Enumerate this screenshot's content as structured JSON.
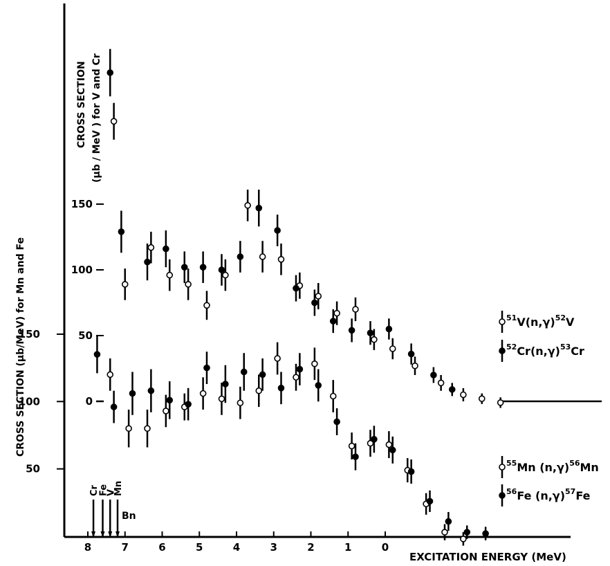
{
  "chart_data": {
    "type": "scatter",
    "xlabel": "EXCITATION ENERGY (MeV)",
    "x_ticks": [
      "8",
      "7",
      "6",
      "5",
      "4",
      "3",
      "2",
      "1",
      "0"
    ],
    "x_range": [
      8.4,
      -3.9
    ],
    "upper_panel": {
      "ylabel_line1": "CROSS SECTION",
      "ylabel_line2": "(μb / MeV ) for V and Cr",
      "y_ticks": [
        "150",
        "100",
        "50",
        "0"
      ],
      "ylim": [
        0,
        200
      ],
      "series": [
        {
          "label": "51V(n,γ)52V",
          "label_parts": [
            "51",
            "V(n,γ)",
            "52",
            "V"
          ],
          "marker": "open",
          "points": [
            {
              "x": 7.3,
              "y": 213,
              "err": 14
            },
            {
              "x": 7.0,
              "y": 89,
              "err": 12
            },
            {
              "x": 6.3,
              "y": 117,
              "err": 12
            },
            {
              "x": 5.8,
              "y": 96,
              "err": 12
            },
            {
              "x": 5.3,
              "y": 89,
              "err": 12
            },
            {
              "x": 4.8,
              "y": 73,
              "err": 11
            },
            {
              "x": 4.3,
              "y": 96,
              "err": 12
            },
            {
              "x": 3.7,
              "y": 149,
              "err": 12
            },
            {
              "x": 3.3,
              "y": 110,
              "err": 12
            },
            {
              "x": 2.8,
              "y": 108,
              "err": 12
            },
            {
              "x": 2.3,
              "y": 88,
              "err": 10
            },
            {
              "x": 1.8,
              "y": 80,
              "err": 10
            },
            {
              "x": 1.3,
              "y": 67,
              "err": 9
            },
            {
              "x": 0.8,
              "y": 70,
              "err": 9
            },
            {
              "x": 0.3,
              "y": 47,
              "err": 8
            },
            {
              "x": -0.2,
              "y": 40,
              "err": 8
            },
            {
              "x": -0.8,
              "y": 27,
              "err": 7
            },
            {
              "x": -1.5,
              "y": 14,
              "err": 6
            },
            {
              "x": -2.1,
              "y": 5,
              "err": 5
            },
            {
              "x": -2.6,
              "y": 2,
              "err": 4
            },
            {
              "x": -3.1,
              "y": -1,
              "err": 4
            }
          ]
        },
        {
          "label": "52Cr(n,γ)53Cr",
          "label_parts": [
            "52",
            "Cr(n,γ)",
            "53",
            "Cr"
          ],
          "marker": "filled",
          "points": [
            {
              "x": 7.4,
              "y": 250,
              "err": 18
            },
            {
              "x": 7.1,
              "y": 129,
              "err": 16
            },
            {
              "x": 6.4,
              "y": 106,
              "err": 14
            },
            {
              "x": 5.9,
              "y": 116,
              "err": 14
            },
            {
              "x": 5.4,
              "y": 102,
              "err": 12
            },
            {
              "x": 4.9,
              "y": 102,
              "err": 12
            },
            {
              "x": 4.4,
              "y": 100,
              "err": 12
            },
            {
              "x": 3.9,
              "y": 110,
              "err": 12
            },
            {
              "x": 3.4,
              "y": 147,
              "err": 14
            },
            {
              "x": 2.9,
              "y": 130,
              "err": 12
            },
            {
              "x": 2.4,
              "y": 86,
              "err": 10
            },
            {
              "x": 1.9,
              "y": 75,
              "err": 10
            },
            {
              "x": 1.4,
              "y": 61,
              "err": 9
            },
            {
              "x": 0.9,
              "y": 54,
              "err": 9
            },
            {
              "x": 0.4,
              "y": 52,
              "err": 9
            },
            {
              "x": -0.1,
              "y": 55,
              "err": 8
            },
            {
              "x": -0.7,
              "y": 36,
              "err": 8
            },
            {
              "x": -1.3,
              "y": 20,
              "err": 6
            },
            {
              "x": -1.8,
              "y": 9,
              "err": 5
            }
          ]
        }
      ]
    },
    "lower_panel": {
      "ylabel": "CROSS SECTION (μb/MeV) for Mn and Fe",
      "y_ticks": [
        "150",
        "100",
        "50"
      ],
      "ylim": [
        0,
        200
      ],
      "series": [
        {
          "label": "55Mn(n,γ)56Mn",
          "label_parts": [
            "55",
            "Mn (n,γ)",
            "56",
            "Mn"
          ],
          "marker": "open",
          "points": [
            {
              "x": 7.4,
              "y": 120,
              "err": 12
            },
            {
              "x": 6.9,
              "y": 80,
              "err": 14
            },
            {
              "x": 6.4,
              "y": 80,
              "err": 14
            },
            {
              "x": 5.9,
              "y": 93,
              "err": 12
            },
            {
              "x": 5.4,
              "y": 96,
              "err": 10
            },
            {
              "x": 4.9,
              "y": 106,
              "err": 12
            },
            {
              "x": 4.4,
              "y": 102,
              "err": 12
            },
            {
              "x": 3.9,
              "y": 99,
              "err": 12
            },
            {
              "x": 3.4,
              "y": 108,
              "err": 12
            },
            {
              "x": 2.9,
              "y": 132,
              "err": 12
            },
            {
              "x": 2.4,
              "y": 118,
              "err": 10
            },
            {
              "x": 1.9,
              "y": 128,
              "err": 12
            },
            {
              "x": 1.4,
              "y": 104,
              "err": 12
            },
            {
              "x": 0.9,
              "y": 67,
              "err": 10
            },
            {
              "x": 0.4,
              "y": 69,
              "err": 10
            },
            {
              "x": -0.1,
              "y": 68,
              "err": 10
            },
            {
              "x": -0.6,
              "y": 49,
              "err": 9
            },
            {
              "x": -1.1,
              "y": 24,
              "err": 8
            },
            {
              "x": -1.6,
              "y": 3,
              "err": 6
            },
            {
              "x": -2.1,
              "y": -2,
              "err": 5
            }
          ]
        },
        {
          "label": "56Fe(n,γ)57Fe",
          "label_parts": [
            "56",
            "Fe (n,γ)",
            "57",
            "Fe"
          ],
          "marker": "filled",
          "points": [
            {
              "x": 7.75,
              "y": 135,
              "err": 14
            },
            {
              "x": 7.3,
              "y": 96,
              "err": 12
            },
            {
              "x": 6.8,
              "y": 106,
              "err": 16
            },
            {
              "x": 6.3,
              "y": 108,
              "err": 16
            },
            {
              "x": 5.8,
              "y": 101,
              "err": 14
            },
            {
              "x": 5.3,
              "y": 98,
              "err": 12
            },
            {
              "x": 4.8,
              "y": 125,
              "err": 12
            },
            {
              "x": 4.3,
              "y": 113,
              "err": 14
            },
            {
              "x": 3.8,
              "y": 122,
              "err": 14
            },
            {
              "x": 3.3,
              "y": 120,
              "err": 12
            },
            {
              "x": 2.8,
              "y": 110,
              "err": 12
            },
            {
              "x": 2.3,
              "y": 124,
              "err": 12
            },
            {
              "x": 1.8,
              "y": 112,
              "err": 12
            },
            {
              "x": 1.3,
              "y": 85,
              "err": 10
            },
            {
              "x": 0.8,
              "y": 59,
              "err": 10
            },
            {
              "x": 0.3,
              "y": 72,
              "err": 10
            },
            {
              "x": -0.2,
              "y": 64,
              "err": 10
            },
            {
              "x": -0.7,
              "y": 48,
              "err": 9
            },
            {
              "x": -1.2,
              "y": 26,
              "err": 8
            },
            {
              "x": -1.7,
              "y": 11,
              "err": 7
            },
            {
              "x": -2.2,
              "y": 3,
              "err": 5
            },
            {
              "x": -2.7,
              "y": 2,
              "err": 5
            }
          ]
        }
      ]
    },
    "markers": [
      {
        "label": "Cr",
        "x": 7.85
      },
      {
        "label": "Fe",
        "x": 7.6
      },
      {
        "label": "V",
        "x": 7.4
      },
      {
        "label": "Mn",
        "x": 7.2
      }
    ],
    "bn_label": "Bn"
  }
}
